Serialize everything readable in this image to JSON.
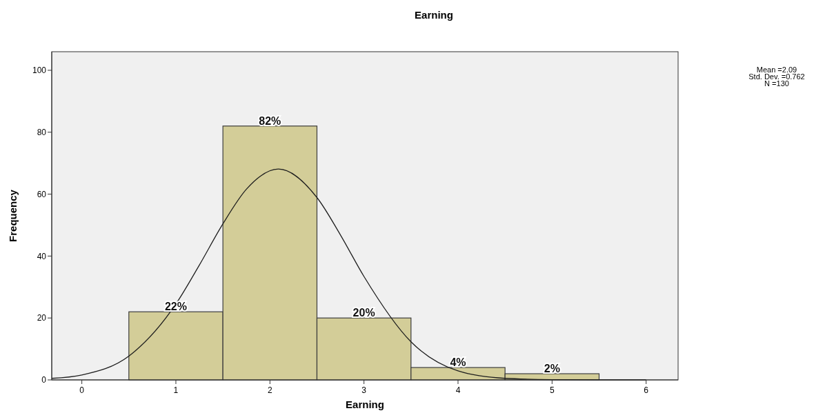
{
  "chart_data": {
    "type": "histogram",
    "title": "Earning",
    "xlabel": "Earning",
    "ylabel": "Frequency",
    "bins": [
      0.5,
      1.5,
      2.5,
      3.5,
      4.5,
      5.5
    ],
    "values": [
      22,
      82,
      20,
      4,
      2
    ],
    "color": "#d3cd98",
    "value_labels": [
      "22%",
      "82%",
      "20%",
      "4%",
      "2%"
    ],
    "series": [
      {
        "type": "line",
        "color": "#1e1e1e",
        "x": [
          -0.32,
          0,
          0.5,
          1,
          1.25,
          1.5,
          1.75,
          2.09,
          2.5,
          2.75,
          3,
          3.5,
          4,
          4.5,
          5,
          5.5,
          6
        ],
        "values": [
          0.5,
          1.6,
          7.7,
          24.5,
          37.1,
          50.4,
          61.6,
          68.1,
          58.9,
          46.8,
          33.4,
          12.3,
          2.9,
          0.5,
          0.1,
          0,
          0
        ]
      }
    ],
    "xlim": [
      -0.32,
      6.34
    ],
    "ylim": [
      0,
      106
    ],
    "xticks": [
      0,
      1,
      2,
      3,
      4,
      5,
      6
    ],
    "yticks": [
      0,
      20,
      40,
      60,
      80,
      100
    ],
    "grid": false,
    "annotations": [
      "Mean =2.09",
      "Std. Dev. =0.762",
      "N =130"
    ]
  }
}
